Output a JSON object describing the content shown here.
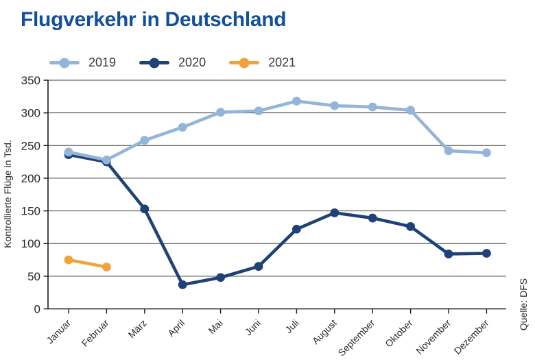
{
  "title": "Flugverkehr in Deutschland",
  "colors": {
    "title": "#134f9a",
    "axis": "#1a1a1a",
    "grid": "#3c3c3c",
    "tick_label": "#262626",
    "axis_title": "#2b2b2b",
    "legend_text": "#3a3a3a"
  },
  "chart_data": {
    "type": "line",
    "title": "Flugverkehr in Deutschland",
    "ylabel": "Kontrollierte Flüge in Tsd.",
    "xlabel": "",
    "source": "Quelle: DFS",
    "categories": [
      "Januar",
      "Februar",
      "März",
      "April",
      "Mai",
      "Juni",
      "Juli",
      "August",
      "September",
      "Oktober",
      "November",
      "Dezember"
    ],
    "yticks": [
      0,
      50,
      100,
      150,
      200,
      250,
      300,
      350
    ],
    "ylim": [
      0,
      350
    ],
    "grid": true,
    "legend_position": "top-left",
    "marker": "circle",
    "series": [
      {
        "name": "2019",
        "color": "#93b5d9",
        "values": [
          240,
          228,
          258,
          278,
          301,
          303,
          318,
          311,
          309,
          304,
          242,
          239
        ]
      },
      {
        "name": "2020",
        "color": "#1e4178",
        "values": [
          236,
          225,
          153,
          37,
          48,
          65,
          122,
          147,
          139,
          126,
          84,
          85
        ]
      },
      {
        "name": "2021",
        "color": "#f0a23c",
        "values": [
          75,
          64
        ]
      }
    ]
  }
}
